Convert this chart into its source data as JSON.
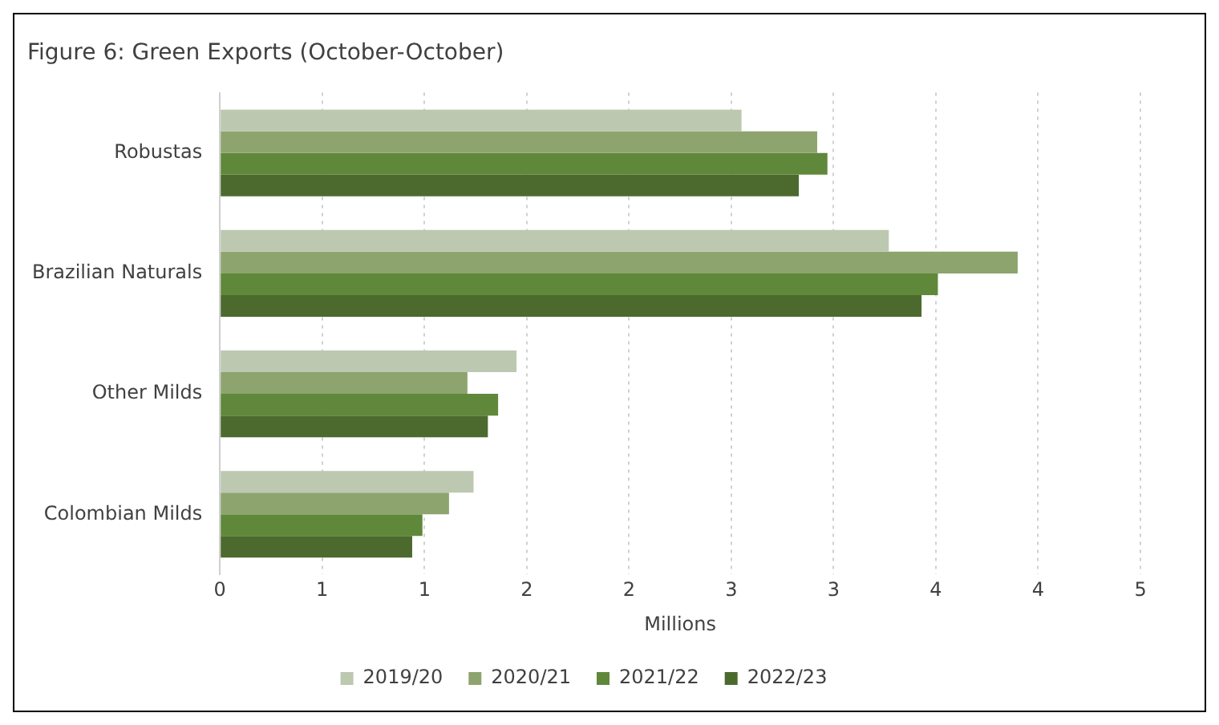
{
  "chart_data": {
    "type": "bar",
    "orientation": "horizontal",
    "title": "Figure 6: Green Exports (October-October)",
    "xlabel": "Millions",
    "categories": [
      "Robustas",
      "Brazilian Naturals",
      "Other Milds",
      "Colombian Milds"
    ],
    "series": [
      {
        "name": "2019/20",
        "color": "#bcc8b0",
        "values": [
          2.55,
          3.27,
          1.45,
          1.24
        ]
      },
      {
        "name": "2020/21",
        "color": "#8ea46e",
        "values": [
          2.92,
          3.9,
          1.21,
          1.12
        ]
      },
      {
        "name": "2021/22",
        "color": "#60883a",
        "values": [
          2.97,
          3.51,
          1.36,
          0.99
        ]
      },
      {
        "name": "2022/23",
        "color": "#4c6a2e",
        "values": [
          2.83,
          3.43,
          1.31,
          0.94
        ]
      }
    ],
    "xlim": [
      0,
      4.5
    ],
    "xticks": [
      0,
      {
        "value": 0.5,
        "label": "1"
      },
      1,
      {
        "value": 1.5,
        "label": "2"
      },
      2,
      {
        "value": 2.5,
        "label": "3"
      },
      3,
      {
        "value": 3.5,
        "label": "4"
      },
      4,
      {
        "value": 4.5,
        "label": "5"
      }
    ],
    "grid": "x",
    "legend": "bottom"
  }
}
